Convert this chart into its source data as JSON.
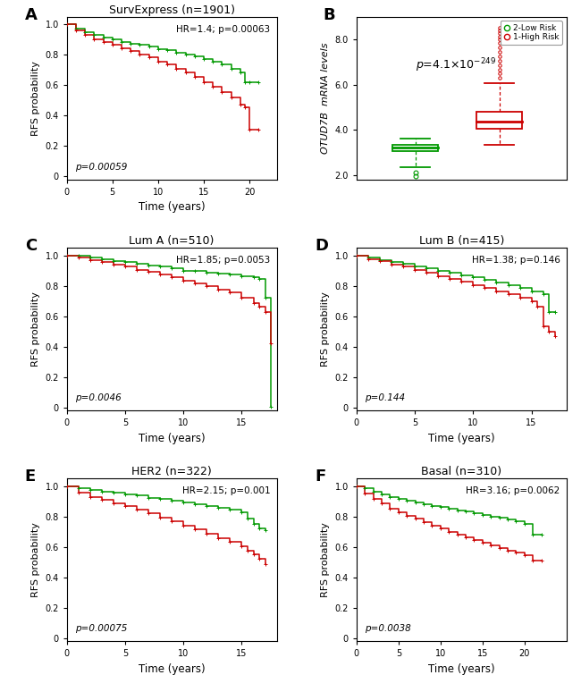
{
  "panel_A": {
    "title": "SurvExpress (n=1901)",
    "hr_text": "HR=1.4; ",
    "hr_p": "p=0.00063",
    "p_text": "p=0.00059",
    "xlabel": "Time (years)",
    "ylabel": "RFS probability",
    "xlim": [
      0,
      23
    ],
    "ylim": [
      -0.02,
      1.05
    ],
    "xticks": [
      0,
      5,
      10,
      15,
      20
    ],
    "green_x": [
      0,
      1,
      2,
      3,
      4,
      5,
      6,
      7,
      8,
      9,
      10,
      11,
      12,
      13,
      14,
      15,
      16,
      17,
      18,
      19,
      19.5,
      20,
      21
    ],
    "green_y": [
      1.0,
      0.97,
      0.95,
      0.93,
      0.915,
      0.9,
      0.885,
      0.875,
      0.865,
      0.855,
      0.84,
      0.83,
      0.815,
      0.805,
      0.79,
      0.775,
      0.755,
      0.735,
      0.71,
      0.685,
      0.62,
      0.62,
      0.62
    ],
    "red_x": [
      0,
      1,
      2,
      3,
      4,
      5,
      6,
      7,
      8,
      9,
      10,
      11,
      12,
      13,
      14,
      15,
      16,
      17,
      18,
      19,
      19.5,
      20,
      21
    ],
    "red_y": [
      1.0,
      0.96,
      0.93,
      0.905,
      0.885,
      0.865,
      0.845,
      0.825,
      0.805,
      0.785,
      0.755,
      0.735,
      0.71,
      0.685,
      0.655,
      0.62,
      0.59,
      0.555,
      0.52,
      0.475,
      0.455,
      0.31,
      0.31
    ]
  },
  "panel_B": {
    "ylabel": "OTUD7B  mRNA levels",
    "legend_labels": [
      "2-Low Risk",
      "1-High Risk"
    ],
    "p_text": "p=4.1x10^{-249}",
    "green_box": {
      "q1": 3.05,
      "median": 3.2,
      "q3": 3.35,
      "whisker_low": 2.35,
      "whisker_high": 3.62,
      "outliers_low": [
        1.95,
        2.1
      ],
      "outliers_high": []
    },
    "red_box": {
      "q1": 4.05,
      "median": 4.38,
      "q3": 4.78,
      "whisker_low": 3.32,
      "whisker_high": 6.08,
      "outliers_low": [],
      "outliers_high": [
        6.3,
        6.5,
        6.65,
        6.85,
        7.05,
        7.25,
        7.45,
        7.65,
        7.85,
        8.0,
        8.12,
        8.28,
        8.4,
        8.52
      ]
    },
    "ylim": [
      1.8,
      9.0
    ],
    "yticks": [
      2.0,
      4.0,
      6.0,
      8.0
    ]
  },
  "panel_C": {
    "title": "Lum A (n=510)",
    "hr_text": "HR=1.85; ",
    "hr_p": "p=0.0053",
    "p_text": "p=0.0046",
    "xlabel": "Time (years)",
    "ylabel": "RFS probability",
    "xlim": [
      0,
      18
    ],
    "ylim": [
      -0.02,
      1.05
    ],
    "xticks": [
      0,
      5,
      10,
      15
    ],
    "green_x": [
      0,
      1,
      2,
      3,
      4,
      5,
      6,
      7,
      8,
      9,
      10,
      11,
      12,
      13,
      14,
      15,
      16,
      16.5,
      17,
      17.5
    ],
    "green_y": [
      1.0,
      0.995,
      0.985,
      0.975,
      0.965,
      0.955,
      0.945,
      0.935,
      0.925,
      0.915,
      0.9,
      0.895,
      0.885,
      0.878,
      0.872,
      0.865,
      0.855,
      0.845,
      0.72,
      0.005
    ],
    "red_x": [
      0,
      1,
      2,
      3,
      4,
      5,
      6,
      7,
      8,
      9,
      10,
      11,
      12,
      13,
      14,
      15,
      16,
      16.5,
      17,
      17.5
    ],
    "red_y": [
      1.0,
      0.985,
      0.97,
      0.955,
      0.94,
      0.925,
      0.905,
      0.89,
      0.875,
      0.855,
      0.835,
      0.815,
      0.795,
      0.775,
      0.755,
      0.72,
      0.685,
      0.66,
      0.63,
      0.42
    ]
  },
  "panel_D": {
    "title": "Lum B (n=415)",
    "hr_text": "HR=1.38; ",
    "hr_p": "p=0.146",
    "p_text": "p=0.144",
    "xlabel": "Time (years)",
    "ylabel": "RFS probability",
    "xlim": [
      0,
      18
    ],
    "ylim": [
      -0.02,
      1.05
    ],
    "xticks": [
      0,
      5,
      10,
      15
    ],
    "green_x": [
      0,
      1,
      2,
      3,
      4,
      5,
      6,
      7,
      8,
      9,
      10,
      11,
      12,
      13,
      14,
      15,
      16,
      16.5,
      17
    ],
    "green_y": [
      1.0,
      0.985,
      0.97,
      0.955,
      0.945,
      0.93,
      0.915,
      0.9,
      0.885,
      0.87,
      0.855,
      0.838,
      0.82,
      0.802,
      0.785,
      0.765,
      0.745,
      0.63,
      0.625
    ],
    "red_x": [
      0,
      1,
      2,
      3,
      4,
      5,
      6,
      7,
      8,
      9,
      10,
      11,
      12,
      13,
      14,
      15,
      15.5,
      16,
      16.5,
      17
    ],
    "red_y": [
      1.0,
      0.975,
      0.96,
      0.94,
      0.925,
      0.905,
      0.885,
      0.865,
      0.845,
      0.825,
      0.805,
      0.785,
      0.765,
      0.745,
      0.72,
      0.695,
      0.66,
      0.535,
      0.5,
      0.47
    ]
  },
  "panel_E": {
    "title": "HER2 (n=322)",
    "hr_text": "HR=2.15; ",
    "hr_p": "p=0.001",
    "p_text": "p=0.00075",
    "xlabel": "Time (years)",
    "ylabel": "RFS probability",
    "xlim": [
      0,
      18
    ],
    "ylim": [
      -0.02,
      1.05
    ],
    "xticks": [
      0,
      5,
      10,
      15
    ],
    "green_x": [
      0,
      1,
      2,
      3,
      4,
      5,
      6,
      7,
      8,
      9,
      10,
      11,
      12,
      13,
      14,
      15,
      15.5,
      16,
      16.5,
      17
    ],
    "green_y": [
      1.0,
      0.99,
      0.975,
      0.965,
      0.958,
      0.948,
      0.938,
      0.925,
      0.915,
      0.905,
      0.895,
      0.882,
      0.87,
      0.858,
      0.845,
      0.83,
      0.785,
      0.75,
      0.72,
      0.71
    ],
    "red_x": [
      0,
      1,
      2,
      3,
      4,
      5,
      6,
      7,
      8,
      9,
      10,
      11,
      12,
      13,
      14,
      15,
      15.5,
      16,
      16.5,
      17
    ],
    "red_y": [
      1.0,
      0.96,
      0.93,
      0.91,
      0.89,
      0.87,
      0.845,
      0.82,
      0.795,
      0.768,
      0.74,
      0.715,
      0.688,
      0.66,
      0.632,
      0.605,
      0.578,
      0.55,
      0.52,
      0.49
    ]
  },
  "panel_F": {
    "title": "Basal (n=310)",
    "hr_text": "HR=3.16; ",
    "hr_p": "p=0.0062",
    "p_text": "p=0.0038",
    "xlabel": "Time (years)",
    "ylabel": "RFS probability",
    "xlim": [
      0,
      25
    ],
    "ylim": [
      -0.02,
      1.05
    ],
    "xticks": [
      0,
      5,
      10,
      15,
      20
    ],
    "green_x": [
      0,
      1,
      2,
      3,
      4,
      5,
      6,
      7,
      8,
      9,
      10,
      11,
      12,
      13,
      14,
      15,
      16,
      17,
      18,
      19,
      20,
      21,
      22
    ],
    "green_y": [
      1.0,
      0.985,
      0.965,
      0.948,
      0.93,
      0.918,
      0.908,
      0.895,
      0.882,
      0.872,
      0.862,
      0.852,
      0.842,
      0.832,
      0.822,
      0.812,
      0.802,
      0.792,
      0.78,
      0.768,
      0.755,
      0.68,
      0.68
    ],
    "red_x": [
      0,
      1,
      2,
      3,
      4,
      5,
      6,
      7,
      8,
      9,
      10,
      11,
      12,
      13,
      14,
      15,
      16,
      17,
      18,
      19,
      20,
      21,
      22
    ],
    "red_y": [
      1.0,
      0.955,
      0.915,
      0.885,
      0.855,
      0.83,
      0.808,
      0.785,
      0.762,
      0.742,
      0.722,
      0.702,
      0.682,
      0.662,
      0.645,
      0.628,
      0.612,
      0.595,
      0.578,
      0.562,
      0.548,
      0.51,
      0.51
    ]
  },
  "colors": {
    "green": "#009900",
    "red": "#cc0000",
    "bg": "#ffffff"
  }
}
